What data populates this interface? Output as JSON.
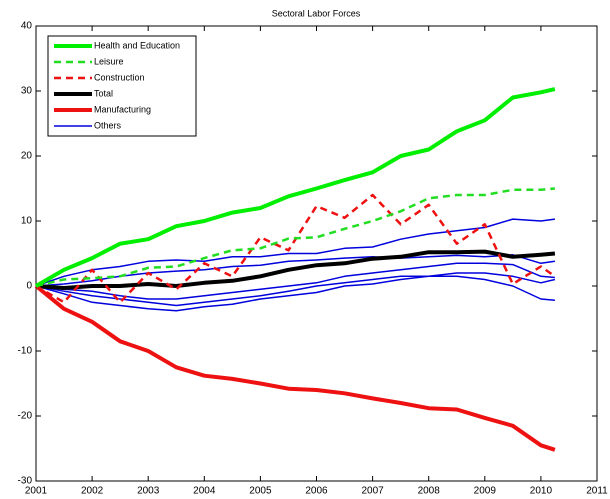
{
  "chart_data": {
    "type": "line",
    "title": "Sectoral Labor Forces",
    "x": [
      2001,
      2001.5,
      2002,
      2002.5,
      2003,
      2003.5,
      2004,
      2004.5,
      2005,
      2005.5,
      2006,
      2006.5,
      2007,
      2007.5,
      2008,
      2008.5,
      2009,
      2009.5,
      2010,
      2010.25
    ],
    "xlim": [
      2001,
      2011
    ],
    "xticks": [
      2001,
      2002,
      2003,
      2004,
      2005,
      2006,
      2007,
      2008,
      2009,
      2010,
      2011
    ],
    "ylim": [
      -30,
      40
    ],
    "yticks": [
      -30,
      -20,
      -10,
      0,
      10,
      20,
      30,
      40
    ],
    "legend": "upper-left",
    "series": [
      {
        "name": "Health and Education",
        "color": "#00ee00",
        "dash": "solid",
        "width": 4,
        "values": [
          0,
          2.5,
          4.3,
          6.5,
          7.2,
          9.2,
          10,
          11.3,
          12,
          13.8,
          15,
          16.3,
          17.5,
          20,
          21,
          23.8,
          25.5,
          29,
          29.8,
          30.3
        ]
      },
      {
        "name": "Leisure",
        "color": "#22dd22",
        "dash": "dashed",
        "width": 2.5,
        "values": [
          0,
          1,
          1.2,
          1.5,
          2.8,
          3,
          4.3,
          5.5,
          5.8,
          7.3,
          7.5,
          8.8,
          10,
          11.5,
          13.5,
          14,
          14,
          14.8,
          14.8,
          15
        ]
      },
      {
        "name": "Construction",
        "color": "#ee1111",
        "dash": "dashed",
        "width": 2.5,
        "values": [
          0,
          -2.5,
          2.5,
          -2.5,
          2,
          -0.5,
          3.5,
          1.5,
          7.5,
          5.5,
          12.3,
          10.5,
          14,
          9.5,
          12.5,
          6.5,
          9.5,
          0.3,
          3,
          1.5
        ]
      },
      {
        "name": "Total",
        "color": "#000000",
        "dash": "solid",
        "width": 4,
        "values": [
          0,
          -0.3,
          0,
          0,
          0.3,
          0,
          0.5,
          0.8,
          1.5,
          2.5,
          3.2,
          3.5,
          4.2,
          4.5,
          5.2,
          5.2,
          5.3,
          4.5,
          4.8,
          5
        ]
      },
      {
        "name": "Manufacturing",
        "color": "#ee1111",
        "dash": "solid",
        "width": 4,
        "values": [
          0,
          -3.5,
          -5.5,
          -8.5,
          -10,
          -12.5,
          -13.8,
          -14.3,
          -15,
          -15.8,
          -16,
          -16.5,
          -17.3,
          -18,
          -18.8,
          -19,
          -20.3,
          -21.5,
          -24.5,
          -25.2
        ]
      },
      {
        "name": "Others",
        "color": "#0000dd",
        "dash": "solid",
        "width": 1.5,
        "values": [
          [
            0,
            1.5,
            2.5,
            3,
            3.8,
            4,
            3.8,
            4.5,
            4.5,
            5,
            5,
            5.8,
            6,
            7.2,
            8,
            8.5,
            9,
            10.3,
            10,
            10.3
          ],
          [
            0,
            0.3,
            0.8,
            1.5,
            2,
            2.3,
            2.5,
            3,
            3.2,
            3.8,
            4,
            4.3,
            4.5,
            4.3,
            4.5,
            4.7,
            4.5,
            4.8,
            3.5,
            3.8
          ],
          [
            0,
            -0.5,
            -0.8,
            -1.5,
            -2,
            -2,
            -1.5,
            -1,
            -0.5,
            0,
            0.5,
            1.5,
            2,
            2.5,
            3,
            3.5,
            3.5,
            3.3,
            1.5,
            1.3
          ],
          [
            0,
            -1.2,
            -2.5,
            -3,
            -3.5,
            -3.8,
            -3.2,
            -2.8,
            -2,
            -1.5,
            -1,
            0,
            0.3,
            1,
            1.5,
            2,
            2,
            1.5,
            0.5,
            1
          ],
          [
            0,
            -0.8,
            -1.5,
            -2,
            -2.5,
            -3,
            -2.5,
            -2,
            -1.5,
            -0.8,
            0,
            0.5,
            1,
            1.5,
            1.5,
            1.5,
            1,
            0,
            -2,
            -2.2
          ]
        ]
      }
    ]
  }
}
